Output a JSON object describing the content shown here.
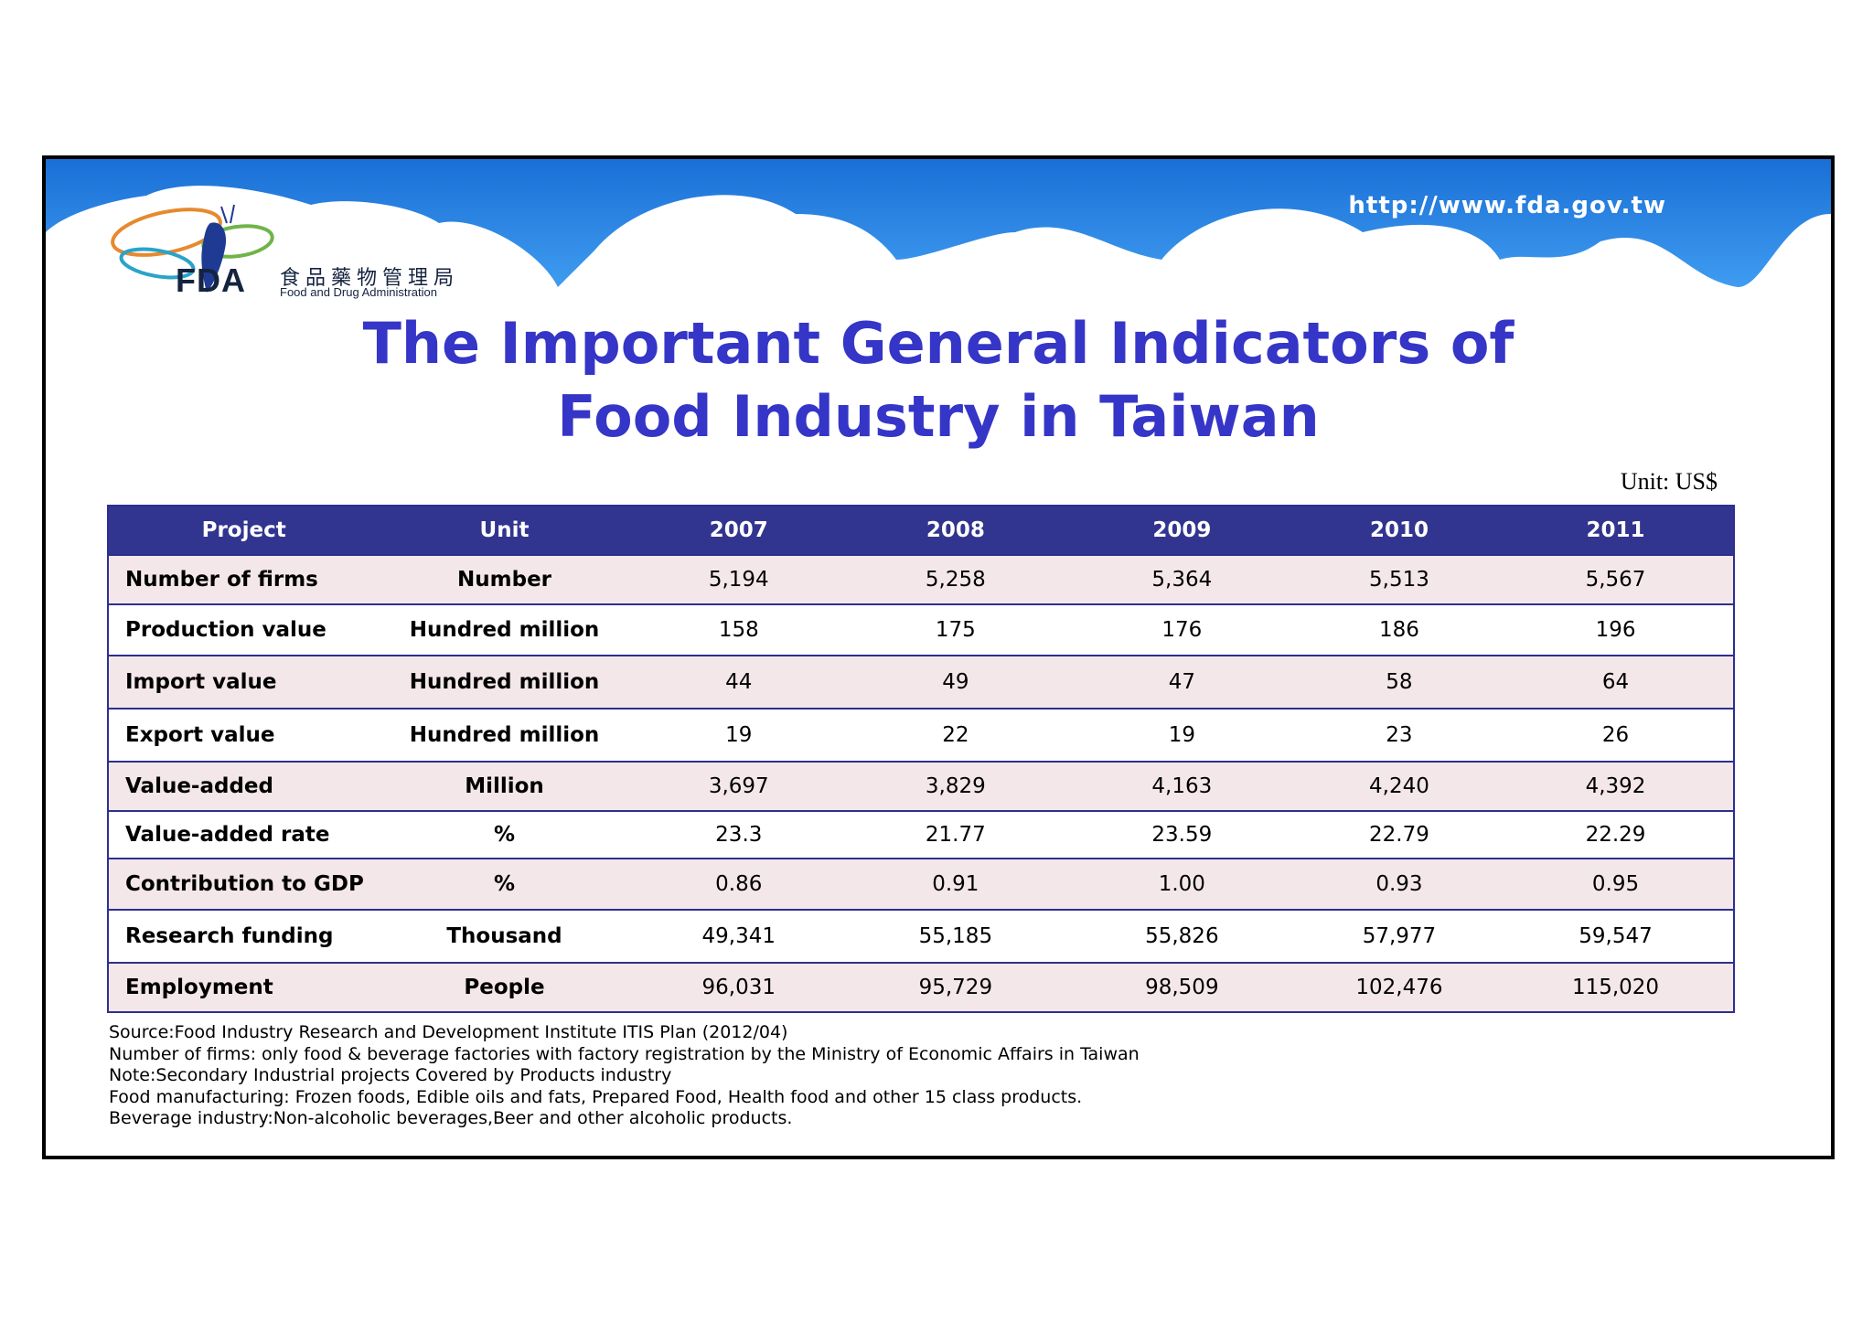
{
  "header": {
    "url": "http://www.fda.gov.tw",
    "logo": {
      "abbr": "FDA",
      "chinese_name": "食品藥物管理局",
      "english_name": "Food and Drug Administration"
    }
  },
  "title": {
    "line1": "The Important General Indicators of",
    "line2": "Food Industry in Taiwan"
  },
  "unit_note": "Unit: US$",
  "table": {
    "headers": [
      "Project",
      "Unit",
      "2007",
      "2008",
      "2009",
      "2010",
      "2011"
    ],
    "rows": [
      {
        "project": "Number of firms",
        "unit": "Number",
        "values": [
          "5,194",
          "5,258",
          "5,364",
          "5,513",
          "5,567"
        ]
      },
      {
        "project": "Production value",
        "unit": "Hundred million",
        "values": [
          "158",
          "175",
          "176",
          "186",
          "196"
        ]
      },
      {
        "project": "Import value",
        "unit": "Hundred million",
        "values": [
          "44",
          "49",
          "47",
          "58",
          "64"
        ]
      },
      {
        "project": "Export value",
        "unit": "Hundred million",
        "values": [
          "19",
          "22",
          "19",
          "23",
          "26"
        ]
      },
      {
        "project": "Value-added",
        "unit": "Million",
        "values": [
          "3,697",
          "3,829",
          "4,163",
          "4,240",
          "4,392"
        ]
      },
      {
        "project": "Value-added rate",
        "unit": "%",
        "values": [
          "23.3",
          "21.77",
          "23.59",
          "22.79",
          "22.29"
        ]
      },
      {
        "project": "Contribution to GDP",
        "unit": "%",
        "values": [
          "0.86",
          "0.91",
          "1.00",
          "0.93",
          "0.95"
        ]
      },
      {
        "project": "Research funding",
        "unit": "Thousand",
        "values": [
          "49,341",
          "55,185",
          "55,826",
          "57,977",
          "59,547"
        ]
      },
      {
        "project": "Employment",
        "unit": "People",
        "values": [
          "96,031",
          "95,729",
          "98,509",
          "102,476",
          "115,020"
        ]
      }
    ]
  },
  "footnotes": [
    "Source:Food Industry Research and Development Institute ITIS Plan (2012/04)",
    "Number of firms: only food & beverage factories with factory registration by the Ministry of Economic Affairs in Taiwan",
    "Note:Secondary Industrial projects Covered by Products industry",
    "Food manufacturing: Frozen foods, Edible oils and fats, Prepared Food, Health food and other 15 class products.",
    "Beverage industry:Non-alcoholic beverages,Beer and other alcoholic products."
  ],
  "colors": {
    "banner_blue": "#1a73d9",
    "title_blue": "#3535c8",
    "table_header": "#32358f",
    "row_tint": "#f4e7ea"
  }
}
